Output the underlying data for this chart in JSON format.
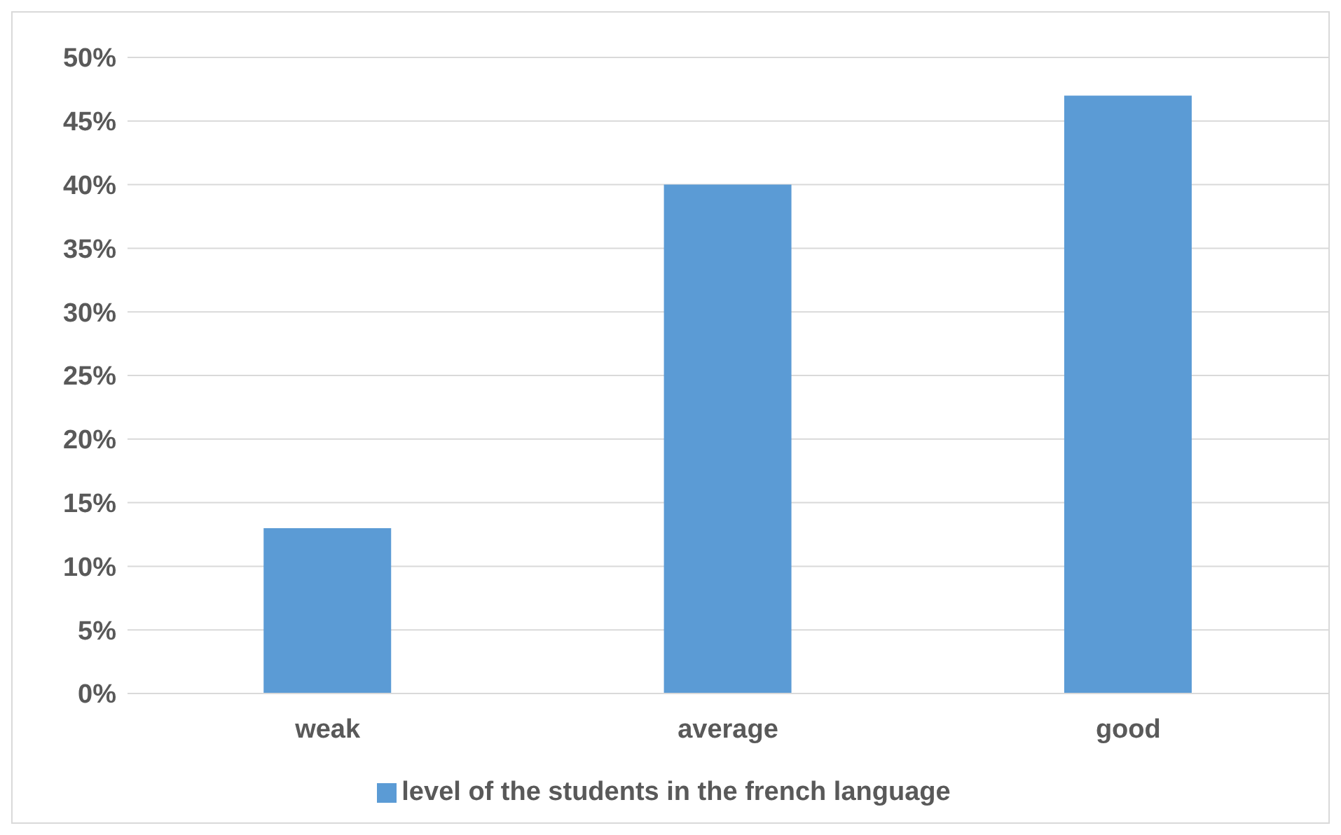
{
  "chart_data": {
    "type": "bar",
    "categories": [
      "weak",
      "average",
      "good"
    ],
    "series": [
      {
        "name": "level of the students in the french language",
        "color": "#5b9bd5",
        "values": [
          13,
          40,
          47
        ]
      }
    ],
    "ylim": [
      0,
      50
    ],
    "yticks": [
      {
        "value": 0,
        "label": "0%"
      },
      {
        "value": 5,
        "label": "5%"
      },
      {
        "value": 10,
        "label": "10%"
      },
      {
        "value": 15,
        "label": "15%"
      },
      {
        "value": 20,
        "label": "20%"
      },
      {
        "value": 25,
        "label": "25%"
      },
      {
        "value": 30,
        "label": "30%"
      },
      {
        "value": 35,
        "label": "35%"
      },
      {
        "value": 40,
        "label": "40%"
      },
      {
        "value": 45,
        "label": "45%"
      },
      {
        "value": 50,
        "label": "50%"
      }
    ],
    "grid": "y",
    "legend": "bottom"
  }
}
